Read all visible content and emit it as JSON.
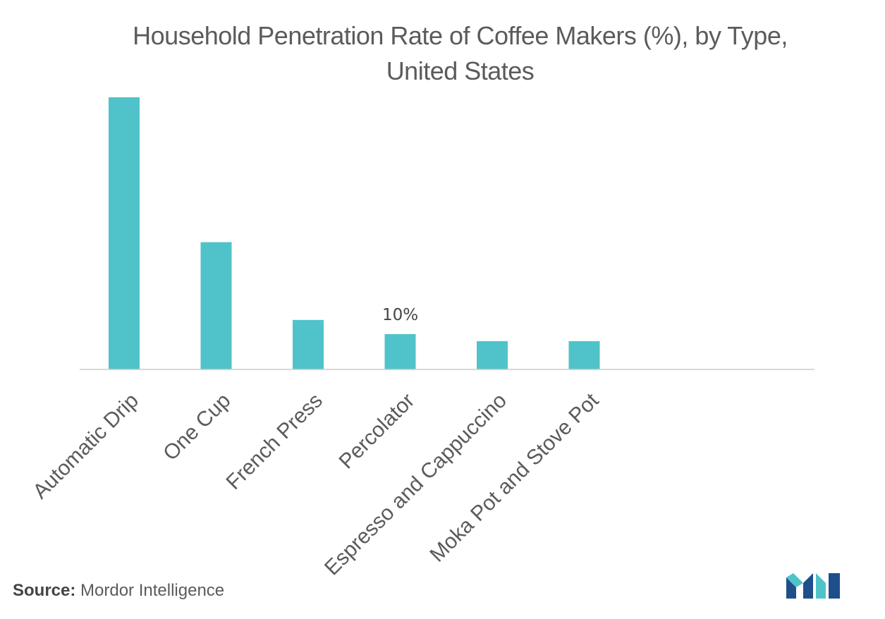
{
  "chart": {
    "title": "Household Penetration Rate of Coffee Makers (%), by Type, United States"
  },
  "source": {
    "label": "Source:",
    "text": "Mordor Intelligence"
  },
  "colors": {
    "bar": "#4fc3c9",
    "axis": "#cccccc",
    "text": "#5b5b5b",
    "logo_dark": "#1f4f8a",
    "logo_light": "#4fc3c9"
  },
  "logo": {
    "icon": "mordor-intelligence-logo-icon"
  },
  "chart_data": {
    "type": "bar",
    "title": "Household Penetration Rate of Coffee Makers (%), by Type, United States",
    "xlabel": "",
    "ylabel": "",
    "categories": [
      "Automatic Drip",
      "One Cup",
      "French Press",
      "Percolator",
      "Espresso and Cappuccino",
      "Moka Pot and Stove Pot"
    ],
    "values": [
      77,
      36,
      14,
      10,
      8,
      8
    ],
    "data_labels": [
      "",
      "",
      "",
      "10%",
      "",
      ""
    ],
    "ylim": [
      0,
      80
    ],
    "grid": false,
    "legend": "none"
  }
}
